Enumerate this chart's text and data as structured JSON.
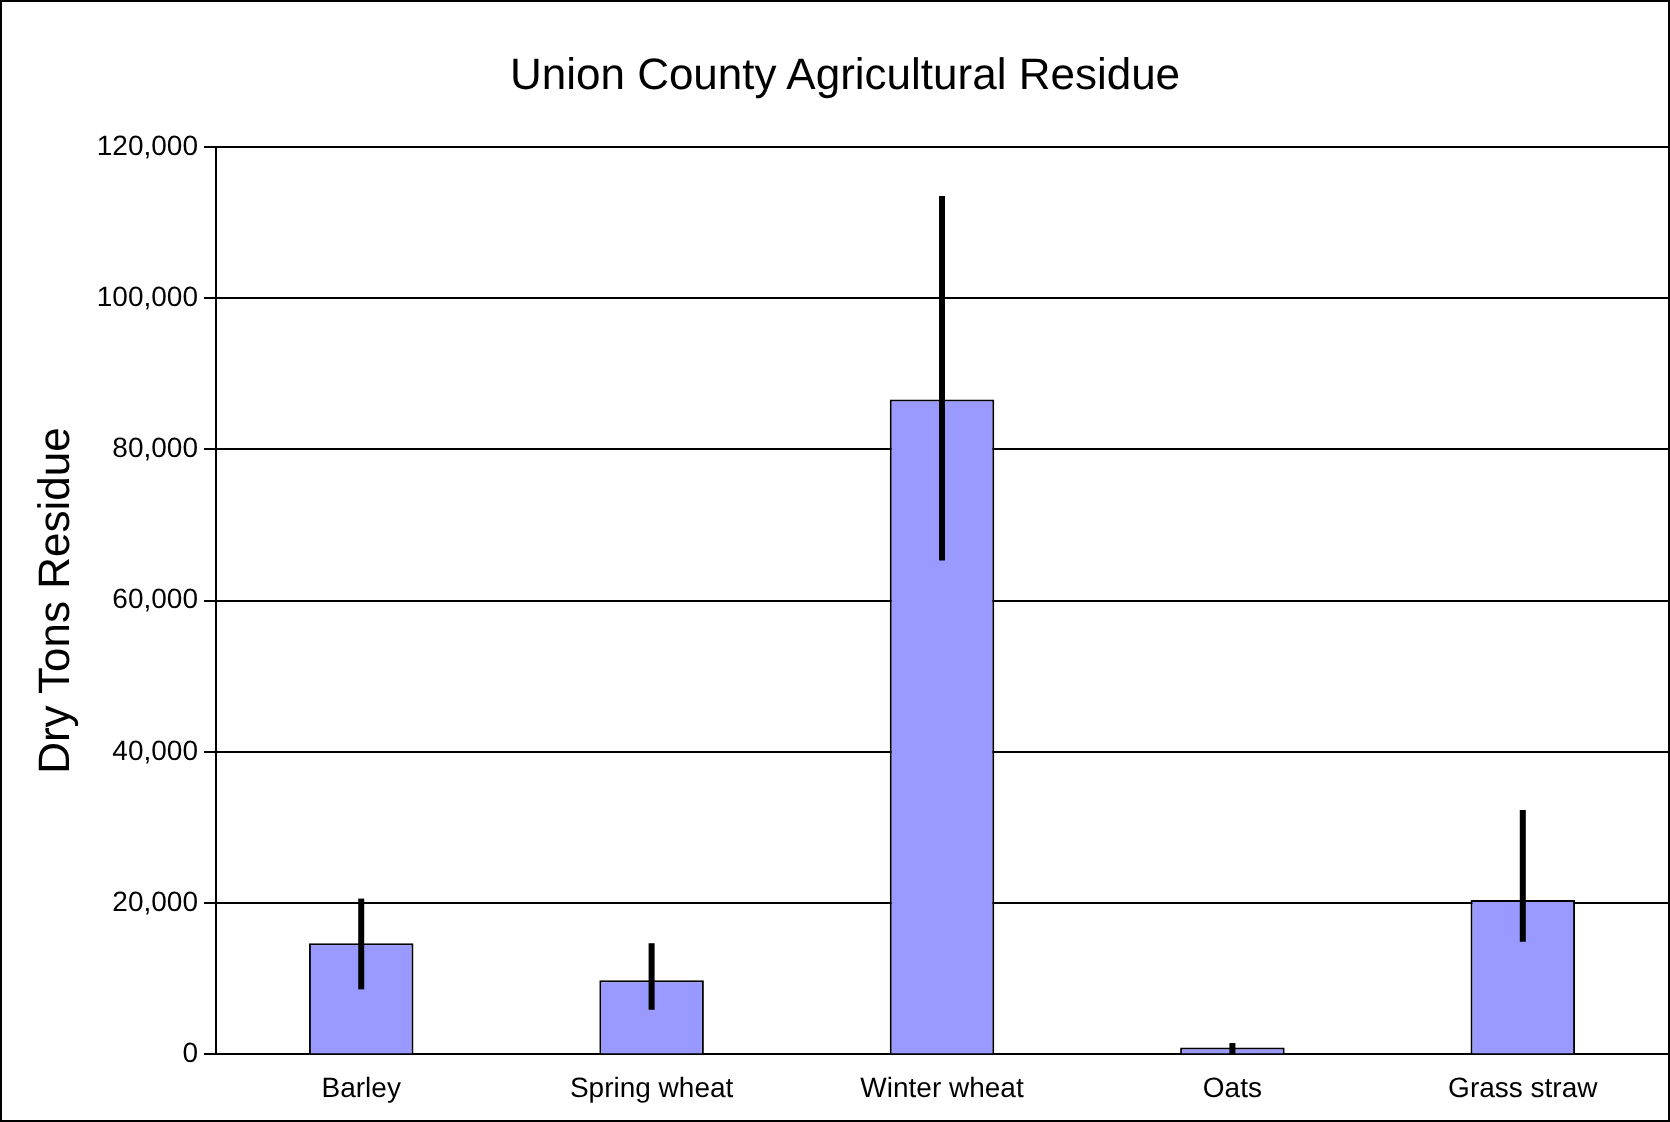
{
  "chart_data": {
    "type": "bar",
    "title": "Union County Agricultural Residue",
    "ylabel": "Dry Tons Residue",
    "categories": [
      "Barley",
      "Spring wheat",
      "Winter wheat",
      "Oats",
      "Grass straw"
    ],
    "values": [
      14700,
      9800,
      86600,
      900,
      20400
    ],
    "errors": [
      [
        8600,
        20600
      ],
      [
        5900,
        14700
      ],
      [
        65300,
        113500
      ],
      [
        0,
        1500
      ],
      [
        14900,
        32300
      ]
    ],
    "color": "#9999ff",
    "ylim": [
      0,
      120000
    ],
    "yticks": [
      0,
      {
        "value": 20000,
        "label": "20,000"
      },
      {
        "value": 40000,
        "label": "40,000"
      },
      {
        "value": 60000,
        "label": "60,000"
      },
      {
        "value": 80000,
        "label": "80,000"
      },
      {
        "value": 100000,
        "label": "100,000"
      },
      {
        "value": 120000,
        "label": "120,000"
      }
    ],
    "grid": "y",
    "legend": false
  }
}
